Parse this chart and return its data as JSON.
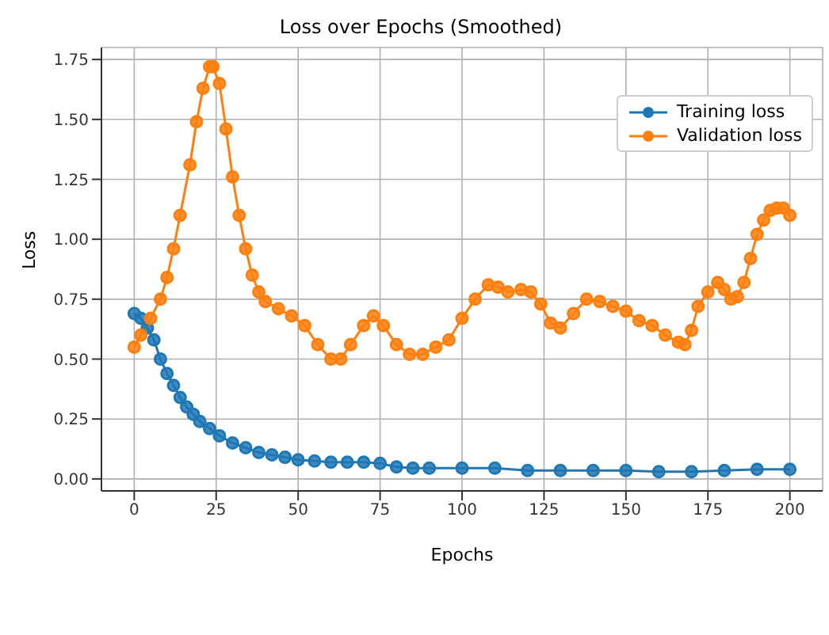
{
  "chart_data": {
    "type": "line",
    "title": "Loss over Epochs (Smoothed)",
    "xlabel": "Epochs",
    "ylabel": "Loss",
    "series": [
      {
        "name": "Training loss",
        "color": "#1f77b4",
        "x": [
          0,
          2,
          4,
          6,
          8,
          10,
          12,
          14,
          16,
          18,
          20,
          23,
          26,
          30,
          34,
          38,
          42,
          46,
          50,
          55,
          60,
          65,
          70,
          75,
          80,
          85,
          90,
          100,
          110,
          120,
          130,
          140,
          150,
          160,
          170,
          180,
          190,
          200
        ],
        "values": [
          0.69,
          0.67,
          0.63,
          0.58,
          0.5,
          0.44,
          0.39,
          0.34,
          0.3,
          0.27,
          0.24,
          0.21,
          0.18,
          0.15,
          0.13,
          0.11,
          0.1,
          0.09,
          0.08,
          0.075,
          0.07,
          0.07,
          0.07,
          0.065,
          0.05,
          0.045,
          0.045,
          0.045,
          0.045,
          0.035,
          0.035,
          0.035,
          0.035,
          0.03,
          0.03,
          0.035,
          0.04,
          0.04
        ]
      },
      {
        "name": "Validation loss",
        "color": "#ff7f0e",
        "x": [
          0,
          2,
          5,
          8,
          10,
          12,
          14,
          17,
          19,
          21,
          23,
          24,
          26,
          28,
          30,
          32,
          34,
          36,
          38,
          40,
          44,
          48,
          52,
          56,
          60,
          63,
          66,
          70,
          73,
          76,
          80,
          84,
          88,
          92,
          96,
          100,
          104,
          108,
          111,
          114,
          118,
          121,
          124,
          127,
          130,
          134,
          138,
          142,
          146,
          150,
          154,
          158,
          162,
          166,
          168,
          170,
          172,
          175,
          178,
          180,
          182,
          184,
          186,
          188,
          190,
          192,
          194,
          196,
          198,
          200
        ],
        "values": [
          0.55,
          0.6,
          0.67,
          0.75,
          0.84,
          0.96,
          1.1,
          1.31,
          1.49,
          1.63,
          1.72,
          1.72,
          1.65,
          1.46,
          1.26,
          1.1,
          0.96,
          0.85,
          0.78,
          0.74,
          0.71,
          0.68,
          0.64,
          0.56,
          0.5,
          0.5,
          0.56,
          0.64,
          0.68,
          0.64,
          0.56,
          0.52,
          0.52,
          0.55,
          0.58,
          0.67,
          0.75,
          0.81,
          0.8,
          0.78,
          0.79,
          0.78,
          0.73,
          0.65,
          0.63,
          0.69,
          0.75,
          0.74,
          0.72,
          0.7,
          0.66,
          0.64,
          0.6,
          0.57,
          0.56,
          0.62,
          0.72,
          0.78,
          0.82,
          0.79,
          0.75,
          0.76,
          0.82,
          0.92,
          1.02,
          1.08,
          1.12,
          1.13,
          1.13,
          1.1
        ]
      }
    ],
    "xlim": [
      -10,
      210
    ],
    "xticks": [
      0,
      25,
      50,
      75,
      100,
      125,
      150,
      175,
      200
    ],
    "ylim": [
      -0.05,
      1.8
    ],
    "yticks": [
      {
        "value": 0,
        "label": "0.00"
      },
      {
        "value": 0.25,
        "label": "0.25"
      },
      {
        "value": 0.5,
        "label": "0.50"
      },
      {
        "value": 0.75,
        "label": "0.75"
      },
      {
        "value": 1,
        "label": "1.00"
      },
      {
        "value": 1.25,
        "label": "1.25"
      },
      {
        "value": 1.5,
        "label": "1.50"
      },
      {
        "value": 1.75,
        "label": "1.75"
      }
    ],
    "grid": true,
    "legend": "top right",
    "marker": "circle",
    "line_style": "solid"
  }
}
